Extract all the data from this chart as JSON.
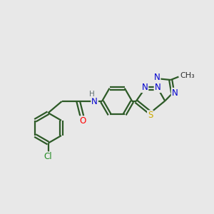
{
  "background_color": "#e8e8e8",
  "bond_color": "#2d5a27",
  "atom_colors": {
    "N": "#0000cd",
    "O": "#ff0000",
    "S": "#ccaa00",
    "Cl": "#228b22",
    "C": "#2d5a27",
    "H": "#607070"
  },
  "line_width": 1.6,
  "dbo": 0.09,
  "font_size_atom": 8.5,
  "font_size_small": 7.5,
  "font_size_methyl": 8.0
}
